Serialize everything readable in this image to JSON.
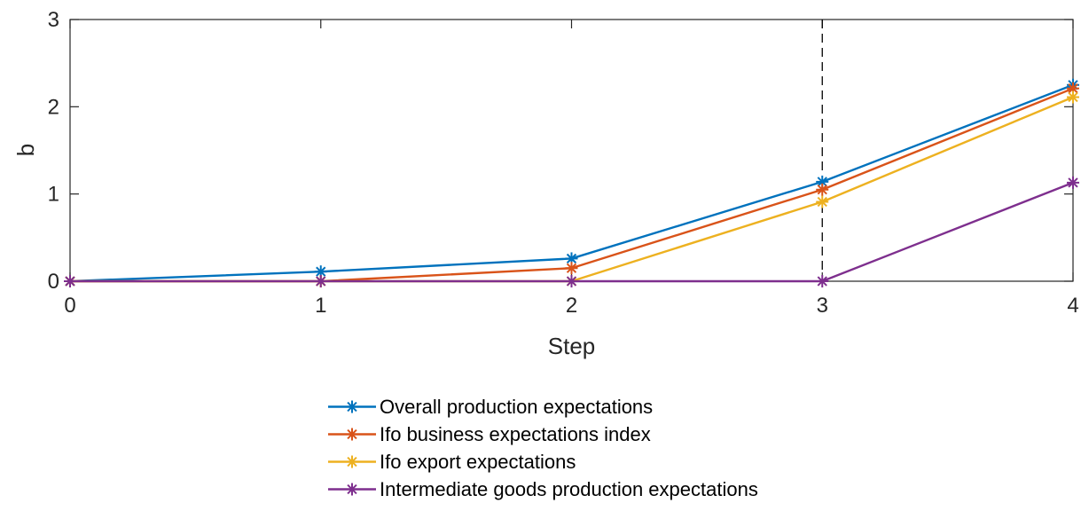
{
  "chart_data": {
    "type": "line",
    "xlabel": "Step",
    "ylabel": "b",
    "xlim": [
      0,
      4
    ],
    "ylim": [
      0,
      3
    ],
    "xticks": [
      "0",
      "1",
      "2",
      "3",
      "4"
    ],
    "yticks": [
      "0",
      "1",
      "2",
      "3"
    ],
    "x": [
      0,
      1,
      2,
      3,
      4
    ],
    "vline_x": 3,
    "grid": false,
    "legend_position": "bottom-outside",
    "series": [
      {
        "name": "Overall production expectations",
        "color": "#0072BD",
        "values": [
          0,
          0.11,
          0.26,
          1.14,
          2.25
        ]
      },
      {
        "name": "Ifo business expectations index",
        "color": "#D95319",
        "values": [
          0,
          0,
          0.15,
          1.05,
          2.21
        ]
      },
      {
        "name": "Ifo export expectations",
        "color": "#EDB120",
        "values": [
          0,
          0,
          0,
          0.91,
          2.11
        ]
      },
      {
        "name": "Intermediate goods production expectations",
        "color": "#7E2F8E",
        "values": [
          0,
          0,
          0,
          0,
          1.13
        ]
      }
    ]
  }
}
